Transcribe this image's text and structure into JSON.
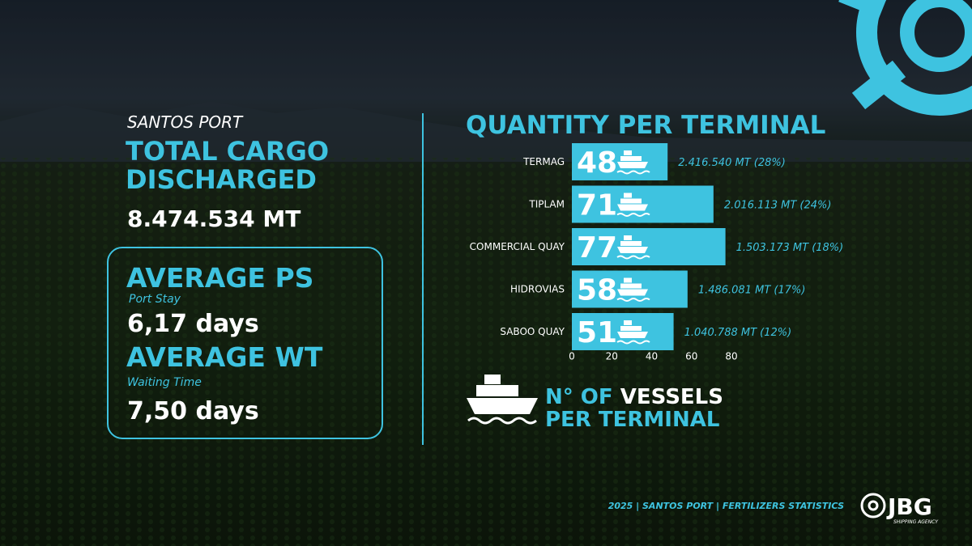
{
  "header": {
    "location": "SANTOS PORT",
    "title_line1": "TOTAL CARGO",
    "title_line2": "DISCHARGED",
    "total": "8.474.534 MT"
  },
  "stats": [
    {
      "title": "AVERAGE PS",
      "subtitle": "Port Stay",
      "value": "6,17 days"
    },
    {
      "title": "AVERAGE WT",
      "subtitle": "Waiting Time",
      "value": "7,50 days"
    }
  ],
  "chart_data": {
    "type": "bar",
    "orientation": "horizontal",
    "title": "QUANTITY PER TERMINAL",
    "categories": [
      "TERMAG",
      "TIPLAM",
      "COMMERCIAL QUAY",
      "HIDROVIAS",
      "SABOO QUAY"
    ],
    "values": [
      48,
      71,
      77,
      58,
      51
    ],
    "quantity_labels": [
      "2.416.540 MT (28%)",
      "2.016.113 MT (24%)",
      "1.503.173 MT (18%)",
      "1.486.081 MT (17%)",
      "1.040.788 MT (12%)"
    ],
    "color": "#3ec3e0",
    "xlim": [
      0,
      80
    ],
    "xticks": [
      0,
      20,
      40,
      60,
      80
    ],
    "legend_title": {
      "part1": "N° OF",
      "part2": "VESSELS",
      "line2": "PER TERMINAL"
    }
  },
  "footer": {
    "text": "2025 | SANTOS PORT | FERTILIZERS STATISTICS",
    "logo": "JBG",
    "logo_sub": "SHIPPING AGENCY"
  }
}
